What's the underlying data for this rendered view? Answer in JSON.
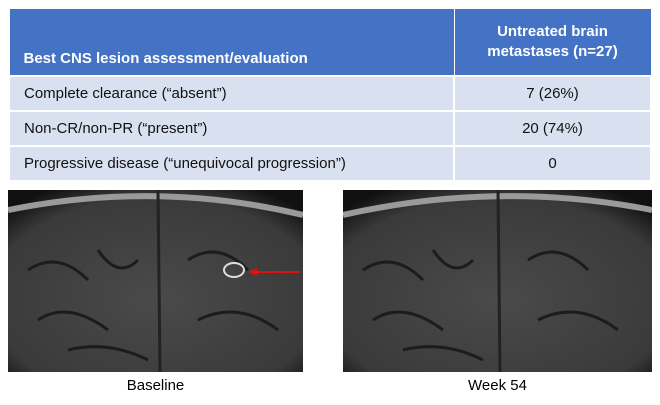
{
  "table": {
    "header": [
      "Best CNS lesion assessment/evaluation",
      "Untreated brain metastases (n=27)"
    ],
    "rows": [
      [
        "Complete clearance (“absent”)",
        "7 (26%)"
      ],
      [
        "Non-CR/non-PR (“present”)",
        "20 (74%)"
      ],
      [
        "Progressive disease (“unequivocal progression”)",
        "0"
      ]
    ]
  },
  "images": [
    {
      "caption": "Baseline"
    },
    {
      "caption": "Week 54"
    }
  ]
}
